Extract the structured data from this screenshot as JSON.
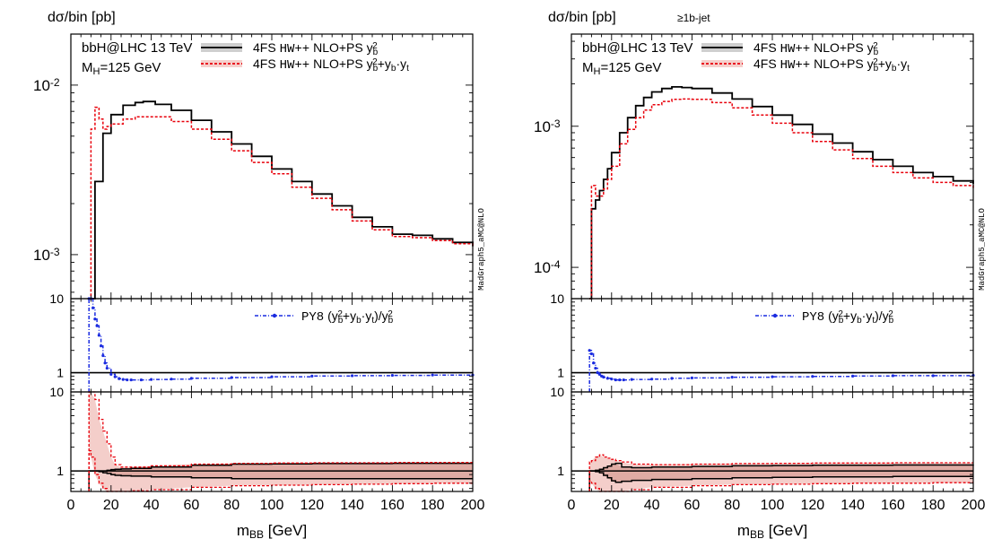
{
  "chart_data": [
    {
      "type": "line",
      "ylabel": "dσ/bin [pb]",
      "xlabel_main": "m",
      "xlabel_sub": "BB",
      "xlabel_unit": " [GeV]",
      "subtitle": "",
      "process_label": "bbH@LHC 13 TeV",
      "mass_main": "M",
      "mass_sub": "H",
      "mass_value": "=125 GeV",
      "watermark": "MadGraph5_aMC@NLO",
      "xlim": [
        0,
        200
      ],
      "x_ticks": [
        "0",
        "20",
        "40",
        "60",
        "80",
        "100",
        "120",
        "140",
        "160",
        "180",
        "200"
      ],
      "main_log": true,
      "main_ylim": [
        0.00055,
        0.02
      ],
      "main_ticks": [
        {
          "v": 0.001,
          "mant": "10",
          "exp": "-3"
        },
        {
          "v": 0.01,
          "mant": "10",
          "exp": "-2"
        }
      ],
      "legend": [
        {
          "prefix": "4FS ",
          "gen": "HW++",
          "rest": " NLO+PS ",
          "coupling": "yb2",
          "color": "#000000",
          "dash": ""
        },
        {
          "prefix": "4FS ",
          "gen": "HW++",
          "rest": " NLO+PS ",
          "coupling": "yb2+ybyt",
          "color": "#e8000b",
          "dash": "3,2"
        }
      ],
      "series": [
        {
          "name": "4FS HW++ NLO+PS yb2",
          "color": "#000000",
          "dash": "",
          "x": [
            9,
            12,
            16,
            20,
            26,
            32,
            36,
            42,
            50,
            60,
            70,
            80,
            90,
            100,
            110,
            120,
            130,
            140,
            150,
            160,
            170,
            180,
            190,
            200
          ],
          "y": [
            0.00055,
            0.0027,
            0.0052,
            0.0067,
            0.0076,
            0.0079,
            0.008,
            0.0077,
            0.0071,
            0.0062,
            0.0053,
            0.0045,
            0.0038,
            0.0032,
            0.0027,
            0.00228,
            0.00194,
            0.00166,
            0.00146,
            0.00132,
            0.0013,
            0.00124,
            0.00118,
            0.00112
          ]
        },
        {
          "name": "4FS HW++ NLO+PS yb2+yb.yt",
          "color": "#e8000b",
          "dash": "3,2",
          "x": [
            9,
            10,
            12,
            14,
            16,
            18,
            20,
            26,
            32,
            40,
            50,
            60,
            70,
            80,
            90,
            100,
            110,
            120,
            130,
            140,
            150,
            160,
            170,
            180,
            190,
            200
          ],
          "y": [
            0.00055,
            0.0055,
            0.0074,
            0.0063,
            0.0055,
            0.0057,
            0.0059,
            0.0063,
            0.0065,
            0.0065,
            0.0061,
            0.0055,
            0.0048,
            0.0041,
            0.0035,
            0.003,
            0.0025,
            0.00215,
            0.00184,
            0.00158,
            0.0014,
            0.00128,
            0.00126,
            0.00121,
            0.00116,
            0.0011
          ]
        }
      ],
      "ratio_legend": {
        "gen": "PY8",
        "text": " (yb2+yb·yt)/yb2",
        "color": "#1a2be0"
      },
      "ratio_ylim": [
        0.55,
        10
      ],
      "ratio_ticks": [
        "1",
        "10"
      ],
      "ratio_series": {
        "name": "PY8 (yb2+yb·yt)/yb2",
        "x": [
          9,
          10,
          11,
          12,
          13,
          14,
          15,
          16,
          17,
          18,
          20,
          22,
          24,
          26,
          28,
          30,
          35,
          40,
          50,
          60,
          80,
          100,
          120,
          140,
          160,
          180,
          200
        ],
        "y": [
          10,
          10,
          7.5,
          5.3,
          4.3,
          3.2,
          2.3,
          1.7,
          1.35,
          1.15,
          0.95,
          0.88,
          0.83,
          0.81,
          0.8,
          0.8,
          0.8,
          0.81,
          0.82,
          0.84,
          0.86,
          0.88,
          0.9,
          0.91,
          0.92,
          0.93,
          0.93
        ]
      },
      "band_ylim": [
        0.55,
        10
      ],
      "band_ticks": [
        "1",
        "10"
      ],
      "band": {
        "x": [
          9,
          10,
          12,
          14,
          16,
          18,
          20,
          22,
          25,
          30,
          40,
          60,
          80,
          100,
          120,
          140,
          160,
          180,
          200
        ],
        "black_hi": [
          1.0,
          1.0,
          1.0,
          1.0,
          1.0,
          1.02,
          1.04,
          1.05,
          1.06,
          1.08,
          1.12,
          1.18,
          1.22,
          1.23,
          1.24,
          1.24,
          1.25,
          1.25,
          1.25
        ],
        "black_lo": [
          1.0,
          1.0,
          1.0,
          0.98,
          0.95,
          0.93,
          0.9,
          0.88,
          0.87,
          0.86,
          0.84,
          0.82,
          0.8,
          0.8,
          0.8,
          0.8,
          0.8,
          0.8,
          0.8
        ],
        "red_hi": [
          10,
          10,
          8,
          4.5,
          3.2,
          2.2,
          1.5,
          1.2,
          1.12,
          1.12,
          1.16,
          1.22,
          1.25,
          1.26,
          1.27,
          1.27,
          1.28,
          1.28,
          1.28
        ],
        "red_lo": [
          1.8,
          1.5,
          0.9,
          0.7,
          0.6,
          0.55,
          0.55,
          0.55,
          0.55,
          0.56,
          0.58,
          0.62,
          0.65,
          0.66,
          0.67,
          0.68,
          0.69,
          0.7,
          0.7
        ]
      }
    },
    {
      "type": "line",
      "ylabel": "dσ/bin [pb]",
      "xlabel_main": "m",
      "xlabel_sub": "BB",
      "xlabel_unit": " [GeV]",
      "subtitle": "≥1b-jet",
      "process_label": "bbH@LHC 13 TeV",
      "mass_main": "M",
      "mass_sub": "H",
      "mass_value": "=125 GeV",
      "watermark": "MadGraph5_aMC@NLO",
      "xlim": [
        0,
        200
      ],
      "x_ticks": [
        "0",
        "20",
        "40",
        "60",
        "80",
        "100",
        "120",
        "140",
        "160",
        "180",
        "200"
      ],
      "main_log": true,
      "main_ylim": [
        6e-05,
        0.0045
      ],
      "main_ticks": [
        {
          "v": 0.0001,
          "mant": "10",
          "exp": "-4"
        },
        {
          "v": 0.001,
          "mant": "10",
          "exp": "-3"
        }
      ],
      "legend": [
        {
          "prefix": "4FS ",
          "gen": "HW++",
          "rest": " NLO+PS ",
          "coupling": "yb2",
          "color": "#000000",
          "dash": ""
        },
        {
          "prefix": "4FS ",
          "gen": "HW++",
          "rest": " NLO+PS ",
          "coupling": "yb2+ybyt",
          "color": "#e8000b",
          "dash": "3,2"
        }
      ],
      "series": [
        {
          "name": "4FS HW++ NLO+PS yb2",
          "color": "#000000",
          "dash": "",
          "x": [
            9,
            10,
            12,
            14,
            16,
            18,
            20,
            24,
            28,
            32,
            36,
            40,
            45,
            50,
            55,
            60,
            70,
            80,
            90,
            100,
            110,
            120,
            130,
            140,
            150,
            160,
            170,
            180,
            190,
            200
          ],
          "y": [
            6e-05,
            0.00026,
            0.0003,
            0.00035,
            0.00042,
            0.0005,
            0.00065,
            0.0009,
            0.00115,
            0.0014,
            0.0016,
            0.00175,
            0.00185,
            0.0019,
            0.00188,
            0.00185,
            0.00172,
            0.00156,
            0.00138,
            0.0012,
            0.00103,
            0.00088,
            0.00076,
            0.00066,
            0.00058,
            0.00052,
            0.00047,
            0.00044,
            0.00041,
            0.00039
          ]
        },
        {
          "name": "4FS HW++ NLO+PS yb2+yb.yt",
          "color": "#e8000b",
          "dash": "3,2",
          "x": [
            9,
            10,
            12,
            14,
            16,
            18,
            20,
            24,
            28,
            32,
            36,
            40,
            45,
            50,
            55,
            60,
            70,
            80,
            90,
            100,
            110,
            120,
            130,
            140,
            150,
            160,
            170,
            180,
            190,
            200
          ],
          "y": [
            6e-05,
            0.00038,
            0.00032,
            0.00032,
            0.00036,
            0.00042,
            0.00052,
            0.00075,
            0.00095,
            0.00115,
            0.0013,
            0.00142,
            0.0015,
            0.00155,
            0.00156,
            0.00155,
            0.00147,
            0.00135,
            0.0012,
            0.00105,
            0.0009,
            0.00078,
            0.00068,
            0.00059,
            0.00052,
            0.00047,
            0.00043,
            0.0004,
            0.00038,
            0.00036
          ]
        }
      ],
      "ratio_legend": {
        "gen": "PY8",
        "text": " (yb2+yb·yt)/yb2",
        "color": "#1a2be0"
      },
      "ratio_ylim": [
        0.55,
        10
      ],
      "ratio_ticks": [
        "1",
        "10"
      ],
      "ratio_series": {
        "name": "PY8 (yb2+yb·yt)/yb2",
        "x": [
          9,
          10,
          11,
          12,
          13,
          14,
          15,
          16,
          18,
          20,
          22,
          24,
          26,
          30,
          40,
          50,
          60,
          80,
          100,
          120,
          140,
          160,
          180,
          200
        ],
        "y": [
          2.0,
          1.8,
          1.35,
          1.15,
          1.0,
          0.95,
          0.9,
          0.87,
          0.84,
          0.82,
          0.8,
          0.8,
          0.8,
          0.81,
          0.82,
          0.84,
          0.85,
          0.87,
          0.88,
          0.89,
          0.9,
          0.91,
          0.91,
          0.92
        ]
      },
      "band_ylim": [
        0.55,
        10
      ],
      "band_ticks": [
        "1",
        "10"
      ],
      "band": {
        "x": [
          9,
          10,
          12,
          14,
          16,
          18,
          20,
          22,
          25,
          30,
          40,
          60,
          80,
          100,
          120,
          140,
          160,
          180,
          200
        ],
        "black_hi": [
          1.0,
          1.0,
          1.02,
          1.05,
          1.1,
          1.15,
          1.22,
          1.25,
          1.12,
          1.1,
          1.12,
          1.14,
          1.16,
          1.17,
          1.18,
          1.18,
          1.19,
          1.19,
          1.2
        ],
        "black_lo": [
          1.0,
          1.0,
          0.98,
          0.95,
          0.88,
          0.82,
          0.75,
          0.72,
          0.74,
          0.76,
          0.78,
          0.8,
          0.82,
          0.83,
          0.84,
          0.84,
          0.85,
          0.85,
          0.85
        ],
        "red_hi": [
          1.3,
          1.35,
          1.5,
          1.6,
          1.5,
          1.45,
          1.4,
          1.35,
          1.3,
          1.22,
          1.2,
          1.22,
          1.24,
          1.25,
          1.26,
          1.26,
          1.27,
          1.27,
          1.27
        ],
        "red_lo": [
          0.75,
          0.7,
          0.6,
          0.55,
          0.55,
          0.55,
          0.55,
          0.55,
          0.55,
          0.58,
          0.62,
          0.65,
          0.67,
          0.68,
          0.69,
          0.7,
          0.7,
          0.71,
          0.71
        ]
      }
    }
  ]
}
